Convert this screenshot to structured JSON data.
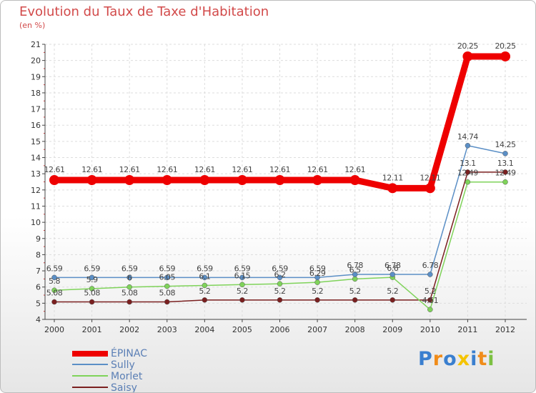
{
  "header": {
    "title": "Evolution du Taux de Taxe d'Habitation",
    "unit": "(en %)"
  },
  "chart_data": {
    "type": "line",
    "title": "Evolution du Taux de Taxe d'Habitation",
    "ylabel": "(en %)",
    "xlabel": "",
    "ylim": [
      4,
      21
    ],
    "yticks": [
      4,
      5,
      6,
      7,
      8,
      9,
      10,
      11,
      12,
      13,
      14,
      15,
      16,
      17,
      18,
      19,
      20,
      21
    ],
    "categories": [
      "2000",
      "2001",
      "2002",
      "2003",
      "2004",
      "2005",
      "2006",
      "2007",
      "2008",
      "2009",
      "2010",
      "2011",
      "2012"
    ],
    "grid": true,
    "series": [
      {
        "name": "ÉPINAC",
        "color": "#ee0000",
        "values": [
          12.61,
          12.61,
          12.61,
          12.61,
          12.61,
          12.61,
          12.61,
          12.61,
          12.61,
          12.11,
          12.11,
          20.25,
          20.25
        ],
        "labels": [
          "12.61",
          "12.61",
          "12.61",
          "12.61",
          "12.61",
          "12.61",
          "12.61",
          "12.61",
          "12.61",
          "12.11",
          "12.11",
          "20.25",
          "20.25"
        ]
      },
      {
        "name": "Sully",
        "color": "#5b8fc6",
        "values": [
          6.59,
          6.59,
          6.59,
          6.59,
          6.59,
          6.59,
          6.59,
          6.59,
          6.78,
          6.78,
          6.78,
          14.74,
          14.25
        ],
        "labels": [
          "6.59",
          "6.59",
          "6.59",
          "6.59",
          "6.59",
          "6.59",
          "6.59",
          "6.59",
          "6.78",
          "6.78",
          "6.78",
          "14.74",
          "14.25"
        ]
      },
      {
        "name": "Morlet",
        "color": "#7fd35a",
        "values": [
          5.8,
          5.9,
          6.0,
          6.05,
          6.1,
          6.15,
          6.2,
          6.29,
          6.5,
          6.6,
          4.61,
          12.49,
          12.49
        ],
        "labels": [
          "5.8",
          "5.9",
          "6",
          "6.05",
          "6.1",
          "6.15",
          "6.2",
          "6.29",
          "6.5",
          "6.6",
          "4.61",
          "12.49",
          "12.49"
        ]
      },
      {
        "name": "Saisy",
        "color": "#7a1f1f",
        "values": [
          5.08,
          5.08,
          5.08,
          5.08,
          5.2,
          5.2,
          5.2,
          5.2,
          5.2,
          5.2,
          5.2,
          13.1,
          13.1
        ],
        "labels": [
          "5.08",
          "5.08",
          "5.08",
          "5.08",
          "5.2",
          "5.2",
          "5.2",
          "5.2",
          "5.2",
          "5.2",
          "5.2",
          "13.1",
          "13.1"
        ]
      }
    ],
    "legend_position": "bottom-left"
  },
  "legend": {
    "items": [
      {
        "label": "ÉPINAC"
      },
      {
        "label": "Sully"
      },
      {
        "label": "Morlet"
      },
      {
        "label": "Saisy"
      }
    ]
  },
  "logo": {
    "text": "Proxiti",
    "letters": [
      {
        "ch": "P",
        "color": "#3a7fcf"
      },
      {
        "ch": "r",
        "color": "#f08c1a"
      },
      {
        "ch": "o",
        "color": "#3a7fcf"
      },
      {
        "ch": "x",
        "color": "#f5c400"
      },
      {
        "ch": "i",
        "color": "#3a7fcf"
      },
      {
        "ch": "t",
        "color": "#f08c1a"
      },
      {
        "ch": "i",
        "color": "#7cc142"
      }
    ]
  }
}
